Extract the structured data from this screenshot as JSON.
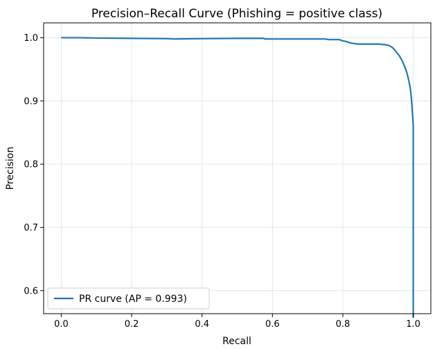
{
  "chart_data": {
    "type": "line",
    "title": "Precision–Recall Curve (Phishing = positive class)",
    "xlabel": "Recall",
    "ylabel": "Precision",
    "xlim": [
      -0.05,
      1.05
    ],
    "ylim": [
      0.5636,
      1.0235
    ],
    "xticks": [
      0.0,
      0.2,
      0.4,
      0.6,
      0.8,
      1.0
    ],
    "xtick_labels": [
      "0.0",
      "0.2",
      "0.4",
      "0.6",
      "0.8",
      "1.0"
    ],
    "yticks": [
      0.6,
      0.7,
      0.8,
      0.9,
      1.0
    ],
    "ytick_labels": [
      "0.6",
      "0.7",
      "0.8",
      "0.9",
      "1.0"
    ],
    "grid": true,
    "legend_position": "lower-left",
    "series": [
      {
        "name": "PR curve (AP = 0.993)",
        "color": "#1f77b4",
        "x": [
          0.0,
          0.05,
          0.1,
          0.2,
          0.3,
          0.32,
          0.4,
          0.5,
          0.575,
          0.578,
          0.65,
          0.75,
          0.76,
          0.79,
          0.8,
          0.81,
          0.82,
          0.83,
          0.84,
          0.86,
          0.88,
          0.9,
          0.92,
          0.93,
          0.94,
          0.945,
          0.95,
          0.955,
          0.96,
          0.965,
          0.97,
          0.975,
          0.98,
          0.985,
          0.99,
          0.992,
          0.994,
          0.996,
          0.997,
          0.998,
          0.999,
          1.0,
          1.0,
          1.0,
          1.0
        ],
        "y": [
          1.0,
          1.0,
          0.9995,
          0.999,
          0.9985,
          0.998,
          0.9985,
          0.999,
          0.999,
          0.998,
          0.998,
          0.998,
          0.997,
          0.997,
          0.995,
          0.994,
          0.992,
          0.991,
          0.99,
          0.99,
          0.99,
          0.99,
          0.989,
          0.988,
          0.985,
          0.982,
          0.979,
          0.975,
          0.972,
          0.967,
          0.962,
          0.955,
          0.948,
          0.938,
          0.925,
          0.918,
          0.908,
          0.895,
          0.886,
          0.878,
          0.87,
          0.862,
          0.75,
          0.65,
          0.557
        ]
      }
    ]
  }
}
